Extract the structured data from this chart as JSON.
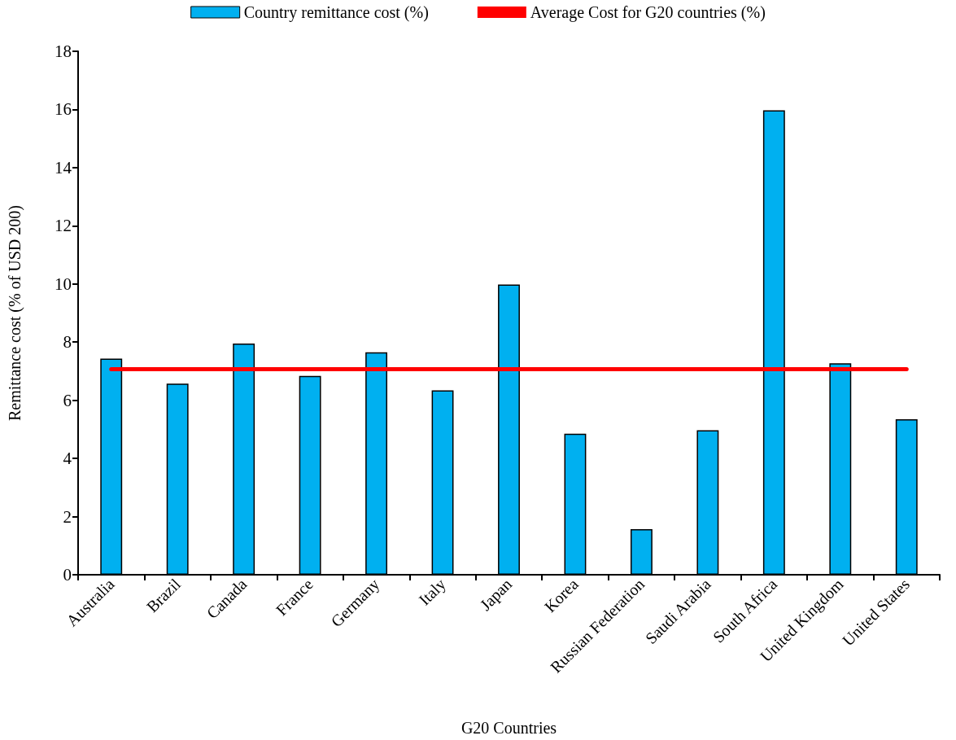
{
  "chart_data": {
    "type": "bar",
    "xlabel": "G20 Countries",
    "ylabel": "Remittance cost (% of USD 200)",
    "categories": [
      "Australia",
      "Brazil",
      "Canada",
      "France",
      "Germany",
      "Italy",
      "Japan",
      "Korea",
      "Russian Federation",
      "Saudi Arabia",
      "South Africa",
      "United Kingdom",
      "United States"
    ],
    "series": [
      {
        "name": "Country remittance cost (%)",
        "color": "#00b0f0",
        "values": [
          7.43,
          6.57,
          7.95,
          6.84,
          7.65,
          6.34,
          9.98,
          4.85,
          1.57,
          4.97,
          15.97,
          7.27,
          5.35
        ]
      },
      {
        "name": "Average Cost for G20 countries (%)",
        "type": "line",
        "color": "#ff0000",
        "marker": "none",
        "values": [
          7.07,
          7.07,
          7.07,
          7.07,
          7.07,
          7.07,
          7.07,
          7.07,
          7.07,
          7.07,
          7.07,
          7.07,
          7.07
        ]
      }
    ],
    "ylim": [
      0,
      18
    ],
    "yticks": [
      0,
      2,
      4,
      6,
      8,
      10,
      12,
      14,
      16,
      18
    ],
    "grid": false,
    "legend": "top"
  }
}
